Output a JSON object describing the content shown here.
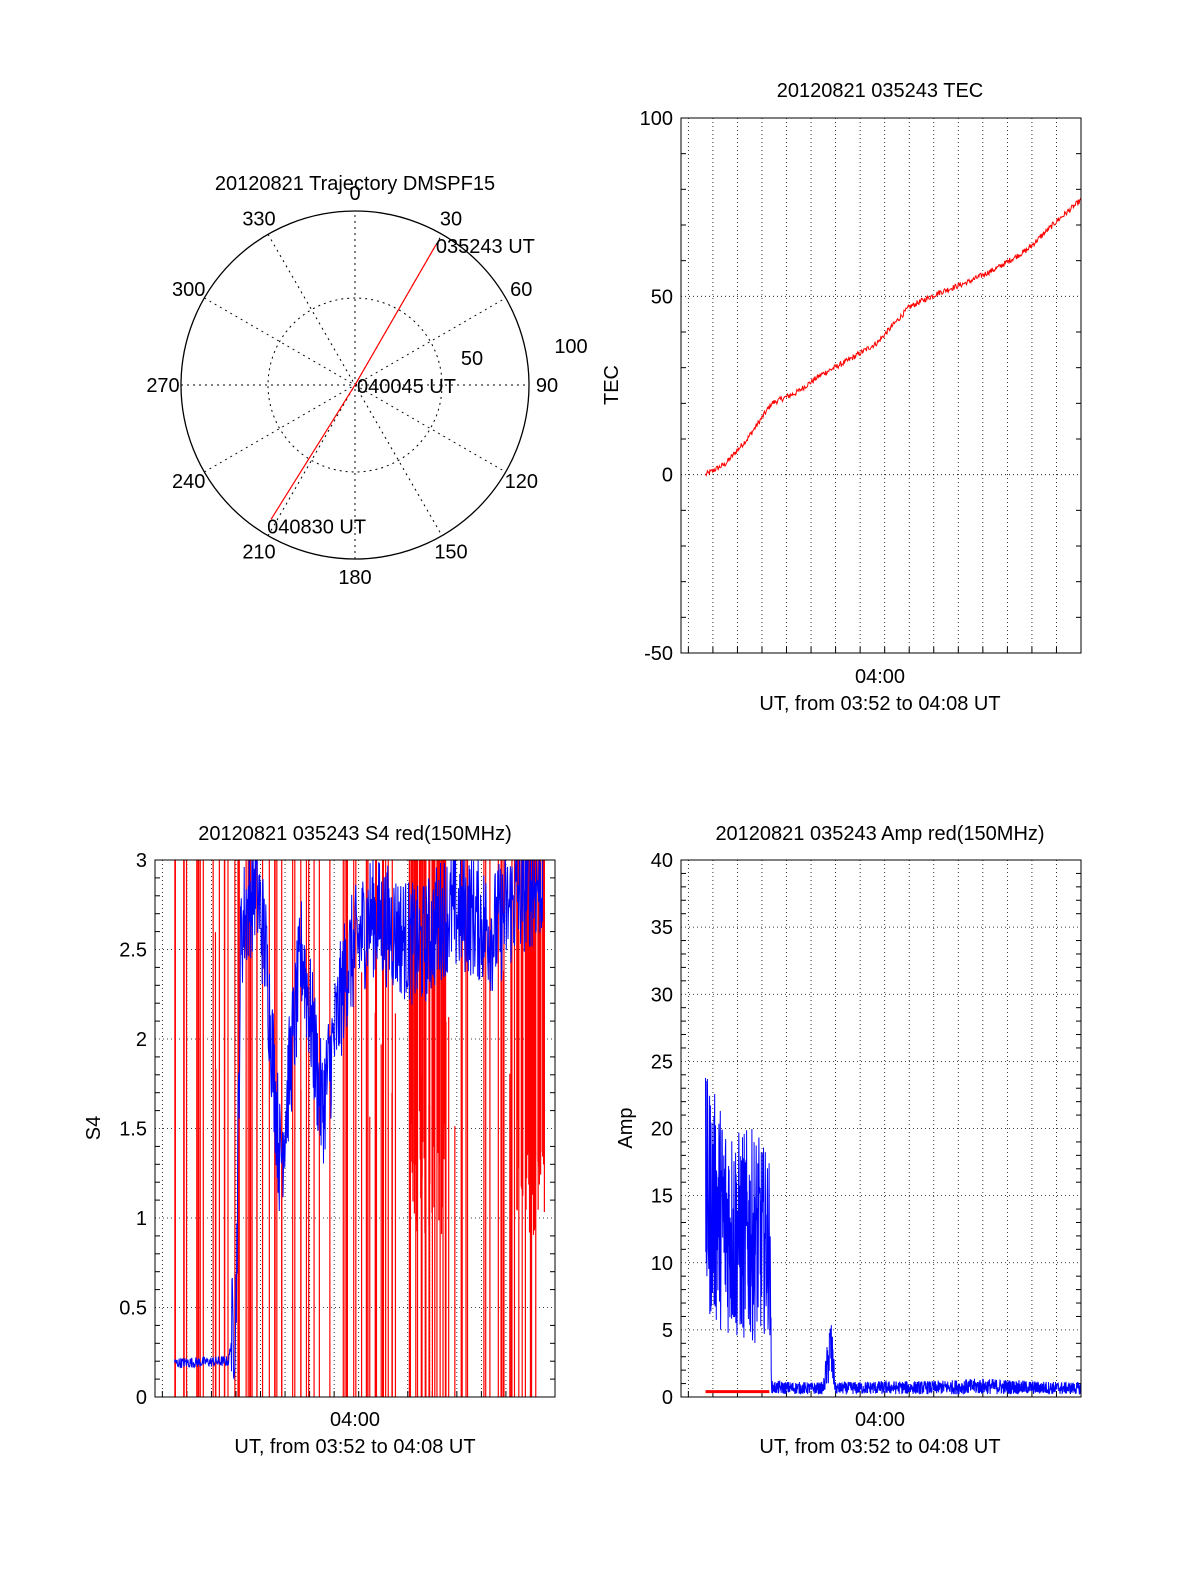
{
  "chart_data": [
    {
      "type": "polar",
      "title": "20120821 Trajectory DMSPF15",
      "angle_labels": [
        "0",
        "30",
        "60",
        "90",
        "120",
        "150",
        "180",
        "210",
        "240",
        "270",
        "300",
        "330"
      ],
      "radius_labels": [
        "50",
        "100"
      ],
      "rlim": [
        0,
        100
      ],
      "grid": true,
      "series": [
        {
          "color": "#ff0000",
          "points": [
            {
              "az": 30,
              "r": 93
            },
            {
              "az": 0,
              "r": 0
            },
            {
              "az": 212,
              "r": 91
            }
          ]
        }
      ],
      "annotations": [
        {
          "text": "035243 UT",
          "az": 30,
          "r": 93
        },
        {
          "text": "040045 UT",
          "az": 0,
          "r": 0
        },
        {
          "text": "040830 UT",
          "az": 212,
          "r": 91
        }
      ]
    },
    {
      "type": "line",
      "title": "20120821 035243 TEC",
      "ylabel": "TEC",
      "xlabel": "UT, from 03:52 to 04:08 UT",
      "xtick_label": "04:00",
      "xlim_minutes": [
        -8.3,
        8.0
      ],
      "ylim": [
        -50,
        100
      ],
      "yticks": [
        -50,
        0,
        50,
        100
      ],
      "grid": true,
      "series": [
        {
          "color": "#ff0000",
          "x": [
            -7.3,
            -6.5,
            -5.6,
            -4.6,
            -3.6,
            -2.6,
            -1.5,
            -0.3,
            1.0,
            2.2,
            3.4,
            4.6,
            5.8,
            7.0,
            8.0
          ],
          "y": [
            0,
            3,
            10,
            20,
            23,
            28,
            32,
            37,
            47,
            51,
            54,
            58,
            63,
            71,
            77
          ]
        }
      ]
    },
    {
      "type": "line",
      "title": "20120821 035243 S4 red(150MHz)",
      "ylabel": "S4",
      "xlabel": "UT, from 03:52 to 04:08 UT",
      "xtick_label": "04:00",
      "xlim_minutes": [
        -8.3,
        8.0
      ],
      "ylim": [
        0,
        3
      ],
      "yticks": [
        "0",
        "0.5",
        "1",
        "1.5",
        "2",
        "2.5",
        "3"
      ],
      "grid": true,
      "series": [
        {
          "color": "#0000ff",
          "x": [
            -7.5,
            -5.3,
            -5.0,
            -4.8,
            -4.2,
            -3.8,
            -3.2,
            -2.3,
            -1.5,
            -0.5,
            0.5,
            1.5,
            2.5,
            3.5,
            4.5,
            5.5,
            6.5,
            7.5
          ],
          "y": [
            0.19,
            0.2,
            0.5,
            2.6,
            2.9,
            2.5,
            1.3,
            2.5,
            1.6,
            2.4,
            2.7,
            2.6,
            2.5,
            2.7,
            2.7,
            2.6,
            2.8,
            2.9
          ]
        },
        {
          "color": "#ff0000",
          "x": [
            -7.5,
            -5.0,
            -3.0,
            -1.0,
            1.0,
            3.0,
            5.0,
            7.0
          ],
          "y": [
            3,
            3,
            3,
            3,
            3,
            3,
            3,
            3
          ]
        }
      ]
    },
    {
      "type": "line",
      "title": "20120821 035243 Amp red(150MHz)",
      "ylabel": "Amp",
      "xlabel": "UT, from 03:52 to 04:08 UT",
      "xtick_label": "04:00",
      "xlim_minutes": [
        -8.3,
        8.0
      ],
      "ylim": [
        0,
        40
      ],
      "yticks": [
        0,
        5,
        10,
        15,
        20,
        25,
        30,
        35,
        40
      ],
      "grid": true,
      "series": [
        {
          "color": "#0000ff",
          "x": [
            -7.3,
            -6.7,
            -6.0,
            -5.3,
            -4.7,
            -4.6,
            -3.0,
            -2.5,
            -2.2,
            -2.0,
            0.0,
            2.0,
            4.0,
            6.0,
            8.0
          ],
          "y": [
            12,
            13,
            12,
            11,
            12,
            0.6,
            0.6,
            0.6,
            6,
            0.6,
            0.6,
            0.6,
            0.6,
            0.6,
            0.6
          ],
          "y_min": [
            6,
            5,
            4,
            4,
            5,
            0.2,
            0.2,
            0.2,
            1,
            0.2,
            0.2,
            0.2,
            0.2,
            0.2,
            0.2
          ],
          "y_max": [
            24,
            22,
            20,
            20,
            18,
            1.2,
            1.1,
            1.1,
            6.5,
            1.1,
            1.2,
            1.2,
            1.4,
            1.2,
            1.1
          ]
        },
        {
          "color": "#ff0000",
          "x": [
            -7.3,
            -4.7
          ],
          "y": [
            0.4,
            0.4
          ]
        }
      ]
    }
  ]
}
